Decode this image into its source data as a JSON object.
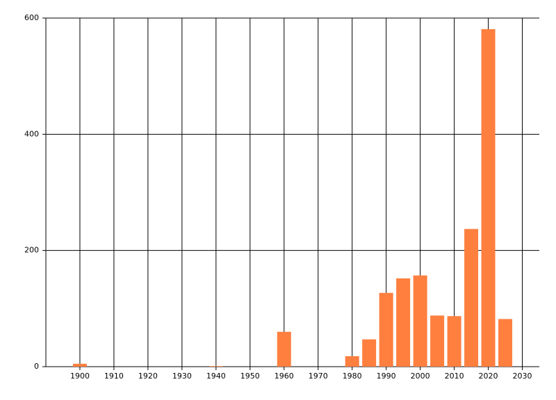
{
  "chart_data": {
    "type": "bar",
    "x": [
      1900,
      1940,
      1960,
      1980,
      1985,
      1990,
      1995,
      2000,
      2005,
      2010,
      2015,
      2020,
      2025
    ],
    "values": [
      5,
      1,
      60,
      18,
      47,
      127,
      152,
      157,
      88,
      87,
      237,
      581,
      82
    ],
    "color": "#ff7f3f",
    "xlim": [
      1890,
      2035
    ],
    "xticks": [
      1900,
      1910,
      1920,
      1930,
      1940,
      1950,
      1960,
      1970,
      1980,
      1990,
      2000,
      2010,
      2020,
      2030
    ],
    "ylim": [
      0,
      600
    ],
    "yticks": [
      0,
      200,
      400,
      600
    ],
    "grid": true
  }
}
